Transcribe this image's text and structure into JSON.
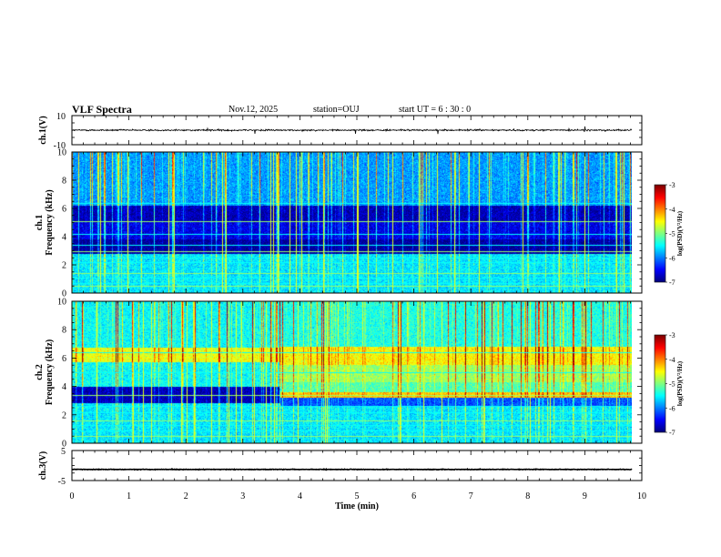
{
  "header": {
    "title": "VLF Spectra",
    "date": "Nov.12, 2025",
    "station": "station=OUJ",
    "start_ut": "start  UT =   6  : 30 : 0"
  },
  "chart_data": {
    "type": "heatmap",
    "x_axis": {
      "label": "Time  (min)",
      "range": [
        0,
        10
      ],
      "ticks": [
        "0",
        "1",
        "2",
        "3",
        "4",
        "5",
        "6",
        "7",
        "8",
        "9",
        "10"
      ],
      "data_extent_max": 9.82
    },
    "panels": [
      {
        "kind": "waveform",
        "ylabel": "ch.1(V)",
        "yrange": [
          -10,
          10
        ],
        "yticks": [
          "10",
          "-10"
        ],
        "baseline_value": 0,
        "noise_amplitude": 0.9
      },
      {
        "kind": "spectrogram",
        "ylabel_top": "ch.1",
        "ylabel": "Frequency  (kHz)",
        "yrange": [
          0,
          10
        ],
        "yticks": [
          "0",
          "2",
          "4",
          "6",
          "8",
          "10"
        ],
        "bands": [
          {
            "f": [
              0,
              2.8
            ],
            "level": -5.6
          },
          {
            "f": [
              2.8,
              3.8
            ],
            "level": -6.9
          },
          {
            "f": [
              3.8,
              5.0
            ],
            "level": -6.6
          },
          {
            "f": [
              5.0,
              6.2
            ],
            "level": -6.8
          },
          {
            "f": [
              6.2,
              10
            ],
            "level": -5.9
          }
        ],
        "lines_khz": [
          0.5,
          0.7,
          1.1,
          1.4,
          2.2,
          2.5,
          3.0,
          3.4,
          4.2,
          5.1,
          6.4
        ],
        "colorbar": {
          "label": "log(PSD)(V²/Hz)",
          "range": [
            -7,
            -3
          ],
          "ticks": [
            "-3",
            "-4",
            "-5",
            "-6",
            "-7"
          ]
        }
      },
      {
        "kind": "spectrogram",
        "ylabel_top": "ch.2",
        "ylabel": "Frequency  (kHz)",
        "yrange": [
          0,
          10
        ],
        "yticks": [
          "0",
          "2",
          "4",
          "6",
          "8",
          "10"
        ],
        "bands": [
          {
            "f": [
              0,
              2.8
            ],
            "level": -5.6
          },
          {
            "f": [
              2.8,
              4.0
            ],
            "level": -6.8
          },
          {
            "f": [
              4.0,
              5.7
            ],
            "level": -5.5
          },
          {
            "f": [
              5.7,
              6.7
            ],
            "level": -4.6
          },
          {
            "f": [
              6.7,
              10
            ],
            "level": -5.5
          }
        ],
        "transition_min": 3.65,
        "bands_after_transition": [
          {
            "f": [
              0,
              2.6
            ],
            "level": -5.6
          },
          {
            "f": [
              2.6,
              3.2
            ],
            "level": -6.2
          },
          {
            "f": [
              3.2,
              3.6
            ],
            "level": -4.3
          },
          {
            "f": [
              3.6,
              4.3
            ],
            "level": -5.2
          },
          {
            "f": [
              4.3,
              5.5
            ],
            "level": -4.9
          },
          {
            "f": [
              5.5,
              6.8
            ],
            "level": -4.5
          },
          {
            "f": [
              6.8,
              10
            ],
            "level": -5.4
          }
        ],
        "lines_khz": [
          0.5,
          0.9,
          1.3,
          1.6,
          2.2,
          2.6,
          3.4,
          5.0,
          6.4
        ],
        "colorbar": {
          "label": "log(PSD)(V²/Hz)",
          "range": [
            -7,
            -3
          ],
          "ticks": [
            "-3",
            "-4",
            "-5",
            "-6",
            "-7"
          ]
        }
      },
      {
        "kind": "waveform",
        "ylabel": "ch.3(V)",
        "yrange": [
          -5,
          5
        ],
        "yticks": [
          "5",
          "-5"
        ],
        "baseline_value": -1.3,
        "noise_amplitude": 0.18
      }
    ]
  }
}
